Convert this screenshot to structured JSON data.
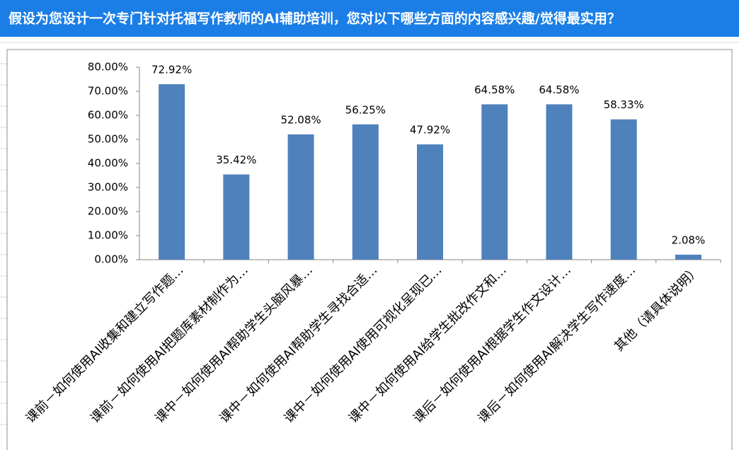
{
  "chart_data": {
    "type": "bar",
    "title": "假设为您设计一次专门针对托福写作教师的AI辅助培训，您对以下哪些方面的内容感兴趣/觉得最实用？",
    "categories": [
      "课前－如何使用AI收集和建立写作题…",
      "课前－如何使用AI把题库素材制作为…",
      "课中－如何使用AI帮助学生头脑风暴…",
      "课中－如何使用AI帮助学生寻找合适…",
      "课中－如何使用AI使用可视化呈现已…",
      "课中－如何使用AI给学生批改作文和…",
      "课后－如何使用AI根据学生作文设计…",
      "课后－如何使用AI解决学生写作速度…",
      "其他（请具体说明）"
    ],
    "values": [
      72.92,
      35.42,
      52.08,
      56.25,
      47.92,
      64.58,
      64.58,
      58.33,
      2.08
    ],
    "value_labels": [
      "72.92%",
      "35.42%",
      "52.08%",
      "56.25%",
      "47.92%",
      "64.58%",
      "64.58%",
      "58.33%",
      "2.08%"
    ],
    "color": "#4f81bd",
    "ylim": [
      0,
      80
    ],
    "yticks": [
      {
        "value": 0,
        "label": "0.00%"
      },
      {
        "value": 10,
        "label": "10.00%"
      },
      {
        "value": 20,
        "label": "20.00%"
      },
      {
        "value": 30,
        "label": "30.00%"
      },
      {
        "value": 40,
        "label": "40.00%"
      },
      {
        "value": 50,
        "label": "50.00%"
      },
      {
        "value": 60,
        "label": "60.00%"
      },
      {
        "value": 70,
        "label": "70.00%"
      },
      {
        "value": 80,
        "label": "80.00%"
      }
    ]
  }
}
